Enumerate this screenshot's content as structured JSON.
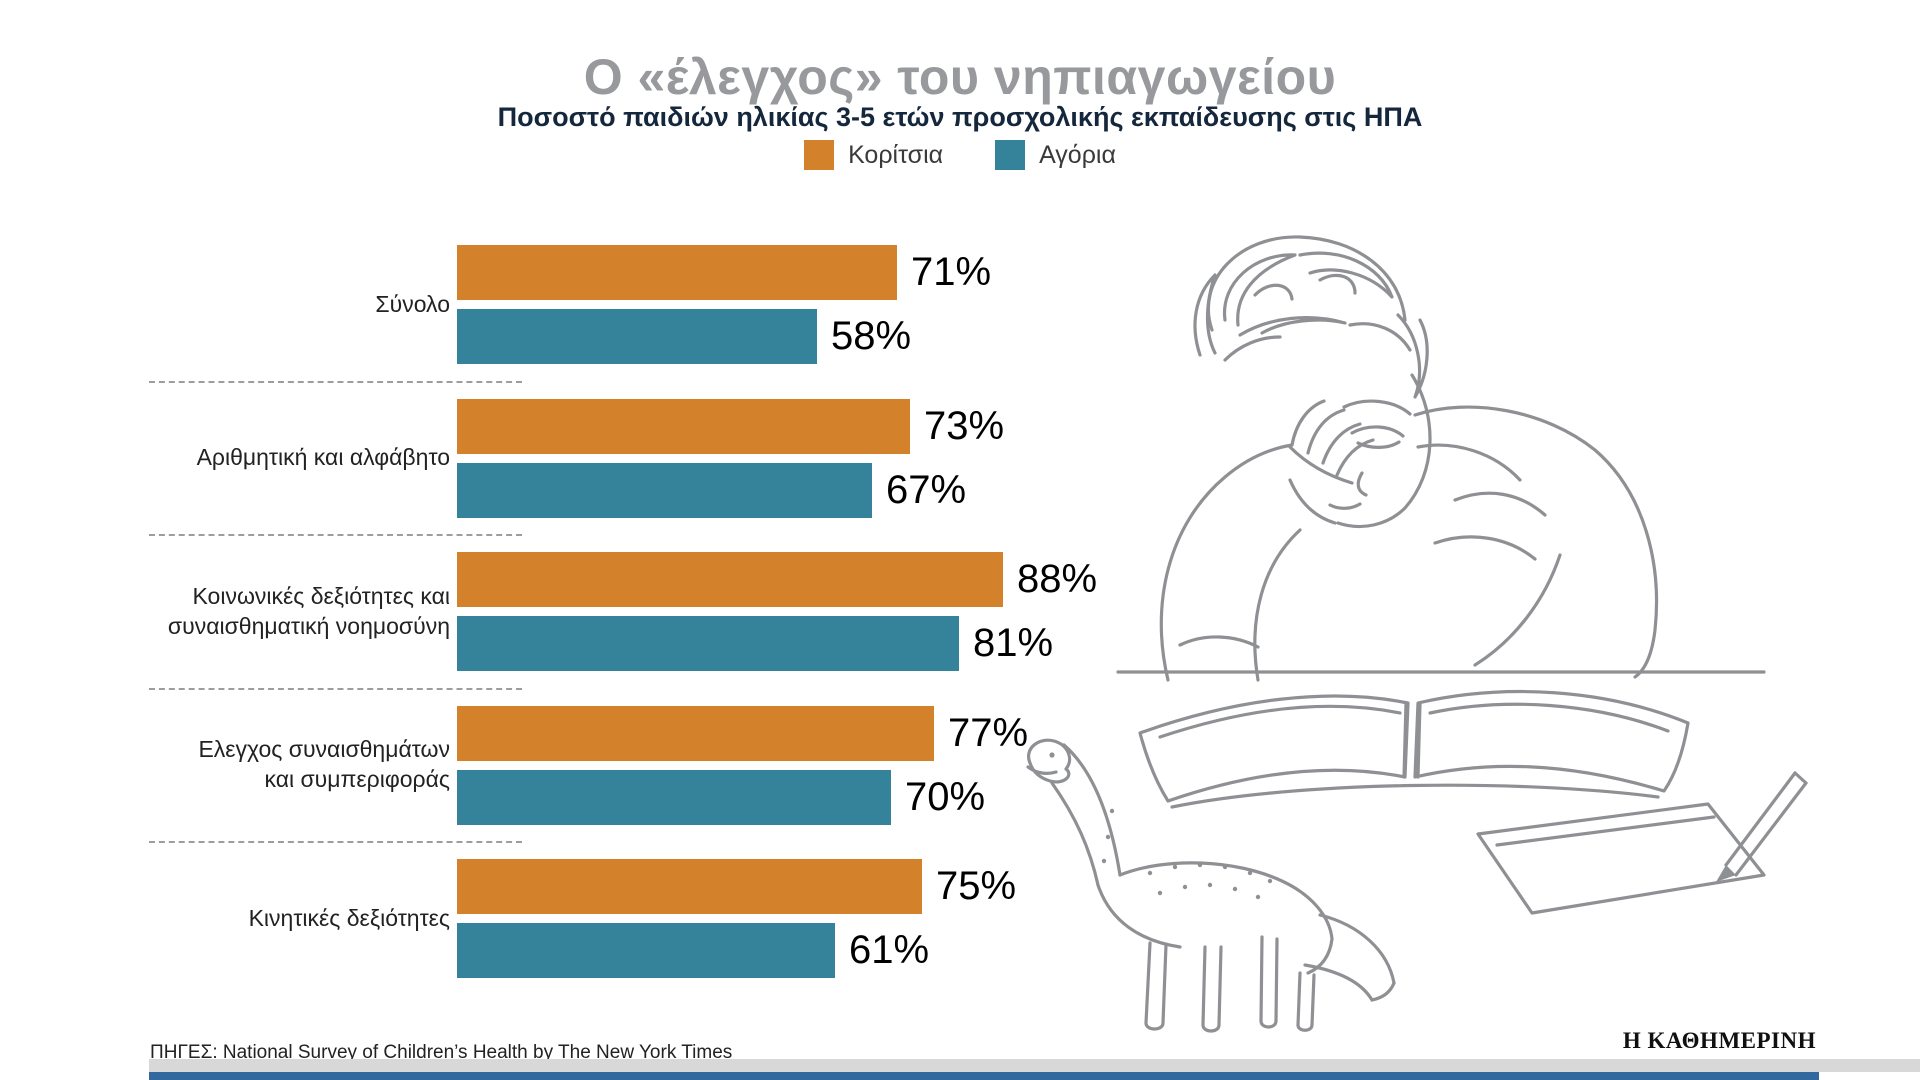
{
  "title": "Ο «έλεγχος» του νηπιαγωγείου",
  "subtitle": "Ποσοστό παιδιών ηλικίας 3-5 ετών προσχολικής εκπαίδευσης στις ΗΠΑ",
  "legend": [
    {
      "label": "Κορίτσια",
      "color": "#d4812b"
    },
    {
      "label": "Αγόρια",
      "color": "#35829b"
    }
  ],
  "chart_data": {
    "type": "bar",
    "orientation": "horizontal",
    "title": "Ο «έλεγχος» του νηπιαγωγείου",
    "subtitle": "Ποσοστό παιδιών ηλικίας 3-5 ετών προσχολικής εκπαίδευσης στις ΗΠΑ",
    "categories": [
      "Σύνολο",
      "Αριθμητική και αλφάβητο",
      "Κοινωνικές δεξιότητες και\nσυναισθηματική νοημοσύνη",
      "Ελεγχος συναισθημάτων\nκαι συμπεριφοράς",
      "Κινητικές δεξιότητες"
    ],
    "series": [
      {
        "name": "Κορίτσια",
        "color": "#d4812b",
        "values": [
          71,
          73,
          88,
          77,
          75
        ]
      },
      {
        "name": "Αγόρια",
        "color": "#35829b",
        "values": [
          58,
          67,
          81,
          70,
          61
        ]
      }
    ],
    "value_suffix": "%",
    "xlim": [
      0,
      100
    ],
    "grid": false,
    "legend_position": "top"
  },
  "footer": {
    "source": "ΠΗΓΕΣ: National Survey of Children’s Health by The New York Times",
    "brand": "Η ΚΑΘΗΜΕΡΙΝΗ"
  },
  "illustration": "child-reading-book-with-toy-dinosaur",
  "colors": {
    "girls": "#d4812b",
    "boys": "#35829b",
    "title_gray": "#97999c",
    "subtitle_navy": "#14273c",
    "sketch_gray": "#8e9093",
    "footer_band_gray": "#d8d8d8",
    "footer_band_blue": "#31699f"
  }
}
